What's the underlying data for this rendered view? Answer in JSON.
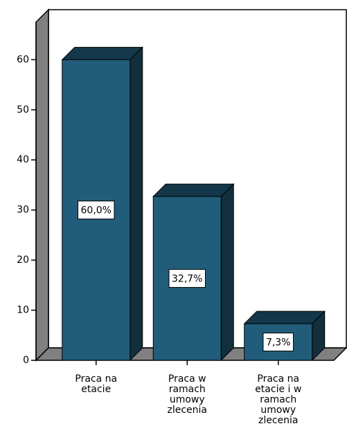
{
  "chart_data": {
    "type": "bar3d",
    "categories": [
      "Praca na etacie",
      "Praca w ramach umowy zlecenia",
      "Praca na etacie i w ramach umowy zlecenia"
    ],
    "values": [
      60.0,
      32.7,
      7.3
    ],
    "value_labels": [
      "60,0%",
      "32,7%",
      "7,3%"
    ],
    "color": "#215d7a",
    "ylim": [
      0,
      67.5
    ],
    "yticks": [
      0,
      10,
      20,
      30,
      40,
      50,
      60
    ],
    "grid": false
  }
}
